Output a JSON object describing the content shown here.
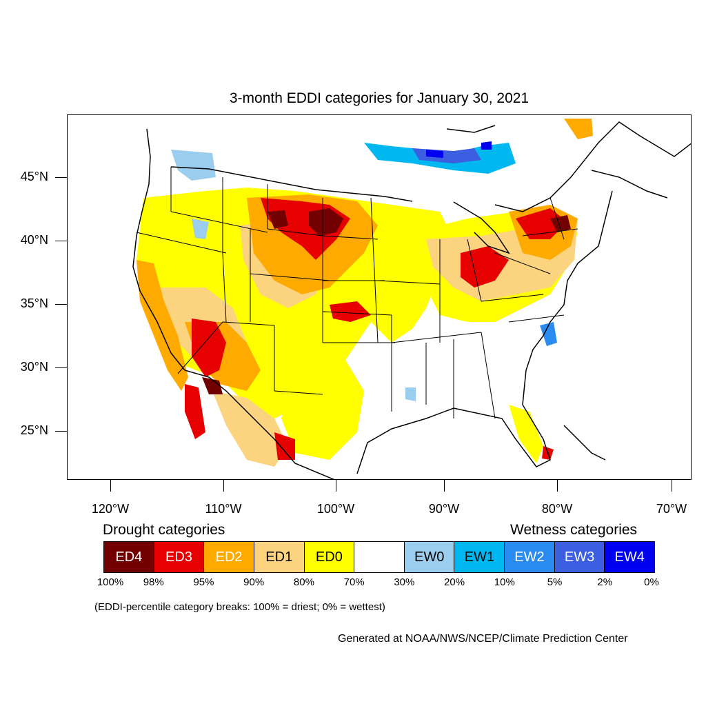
{
  "title": "3-month EDDI categories for January 30, 2021",
  "lat_labels": [
    "45°N",
    "40°N",
    "35°N",
    "30°N",
    "25°N"
  ],
  "lon_labels": [
    "120°W",
    "110°W",
    "100°W",
    "90°W",
    "80°W",
    "70°W"
  ],
  "legend": {
    "drought_heading": "Drought categories",
    "wetness_heading": "Wetness categories",
    "categories": [
      {
        "label": "ED4",
        "color": "#730000",
        "text_color": "#ffffff"
      },
      {
        "label": "ED3",
        "color": "#e60000",
        "text_color": "#ffffff"
      },
      {
        "label": "ED2",
        "color": "#ffaa00",
        "text_color": "#ffffff"
      },
      {
        "label": "ED1",
        "color": "#fcd37f",
        "text_color": "#000000"
      },
      {
        "label": "ED0",
        "color": "#ffff00",
        "text_color": "#000000"
      },
      {
        "label": "",
        "color": "#ffffff",
        "text_color": "#000000"
      },
      {
        "label": "EW0",
        "color": "#9bcdee",
        "text_color": "#000000"
      },
      {
        "label": "EW1",
        "color": "#00b7f0",
        "text_color": "#000000"
      },
      {
        "label": "EW2",
        "color": "#2a8cf0",
        "text_color": "#ffffff"
      },
      {
        "label": "EW3",
        "color": "#3b5fe0",
        "text_color": "#ffffff"
      },
      {
        "label": "EW4",
        "color": "#0000f0",
        "text_color": "#ffffff"
      }
    ],
    "breaks": [
      "100%",
      "98%",
      "95%",
      "90%",
      "80%",
      "70%",
      "30%",
      "20%",
      "10%",
      "5%",
      "2%",
      "0%"
    ]
  },
  "note": "(EDDI-percentile category breaks: 100% = driest; 0% = wettest)",
  "credit": "Generated at NOAA/NWS/NCEP/Climate Prediction Center"
}
